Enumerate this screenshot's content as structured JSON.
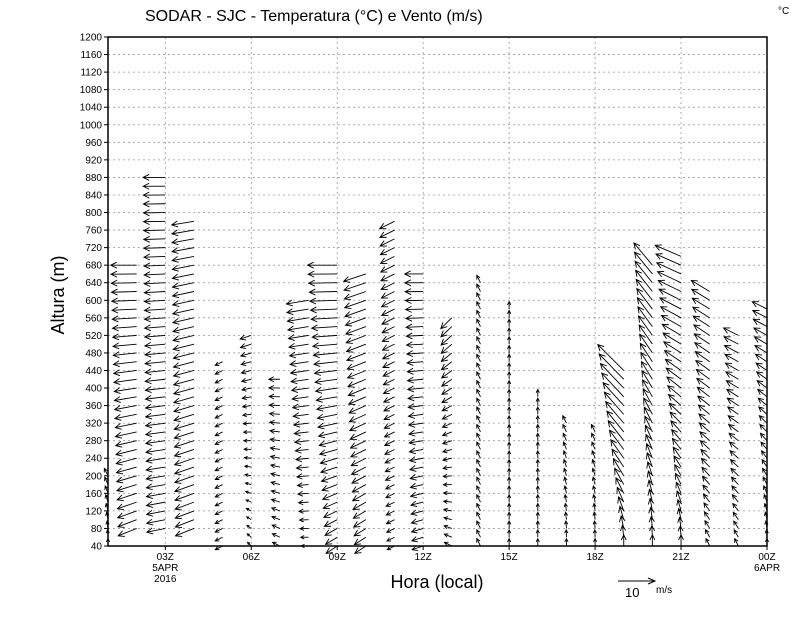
{
  "chart_data": {
    "type": "vector",
    "title": "SODAR - SJC - Temperatura (°C) e Vento (m/s)",
    "corner_label": "°C",
    "xlabel": "Hora (local)",
    "ylabel": "Altura (m)",
    "ylim": [
      40,
      1200
    ],
    "ystep": 40,
    "xlim_hours": [
      1,
      24
    ],
    "grid": true,
    "x_ticks": [
      {
        "hour": 3,
        "label": "03Z",
        "sub": [
          "5APR",
          "2016"
        ]
      },
      {
        "hour": 6,
        "label": "06Z",
        "sub": []
      },
      {
        "hour": 9,
        "label": "09Z",
        "sub": []
      },
      {
        "hour": 12,
        "label": "12Z",
        "sub": []
      },
      {
        "hour": 15,
        "label": "15Z",
        "sub": []
      },
      {
        "hour": 18,
        "label": "18Z",
        "sub": []
      },
      {
        "hour": 21,
        "label": "21Z",
        "sub": []
      },
      {
        "hour": 24,
        "label": "00Z",
        "sub": [
          "6APR"
        ]
      }
    ],
    "reference_vector": {
      "value": 10,
      "label": "10",
      "unit": "m/s"
    },
    "height_step_m": 20,
    "profiles": [
      {
        "hour": 1,
        "bottom": 40,
        "top": 200,
        "u0": 0,
        "v0": 2,
        "u1": -1,
        "v1": 2
      },
      {
        "hour": 2,
        "bottom": 80,
        "top": 680,
        "u0": -5,
        "v0": -2,
        "u1": -7,
        "v1": 0
      },
      {
        "hour": 3,
        "bottom": 80,
        "top": 880,
        "u0": -5,
        "v0": -1,
        "u1": -6,
        "v1": 0
      },
      {
        "hour": 4,
        "bottom": 80,
        "top": 780,
        "u0": -5,
        "v0": -2,
        "u1": -6,
        "v1": -1
      },
      {
        "hour": 5,
        "bottom": 40,
        "top": 460,
        "u0": -2,
        "v0": -1,
        "u1": -2,
        "v1": -1
      },
      {
        "hour": 6,
        "bottom": 40,
        "top": 520,
        "u0": -1,
        "v0": 1,
        "u1": -3,
        "v1": -1
      },
      {
        "hour": 7,
        "bottom": 40,
        "top": 420,
        "u0": -2,
        "v0": 1,
        "u1": -3,
        "v1": 0
      },
      {
        "hour": 8,
        "bottom": 40,
        "top": 600,
        "u0": -2,
        "v0": 0,
        "u1": -6,
        "v1": -1
      },
      {
        "hour": 9,
        "bottom": 40,
        "top": 680,
        "u0": -3,
        "v0": -2,
        "u1": -8,
        "v1": 0
      },
      {
        "hour": 10,
        "bottom": 40,
        "top": 660,
        "u0": -3,
        "v0": -2,
        "u1": -6,
        "v1": -2
      },
      {
        "hour": 11,
        "bottom": 40,
        "top": 780,
        "u0": -2,
        "v0": -1,
        "u1": -4,
        "v1": -2
      },
      {
        "hour": 12,
        "bottom": 40,
        "top": 660,
        "u0": -3,
        "v0": -1,
        "u1": -5,
        "v1": 0
      },
      {
        "hour": 13,
        "bottom": 40,
        "top": 570,
        "u0": -2,
        "v0": 1,
        "u1": -3,
        "v1": -3
      },
      {
        "hour": 14,
        "bottom": 40,
        "top": 640,
        "u0": -1,
        "v0": 2,
        "u1": -1,
        "v1": 2
      },
      {
        "hour": 15,
        "bottom": 40,
        "top": 580,
        "u0": 0,
        "v0": 2,
        "u1": 0,
        "v1": 2
      },
      {
        "hour": 16,
        "bottom": 40,
        "top": 380,
        "u0": 0,
        "v0": 2,
        "u1": 0,
        "v1": 2
      },
      {
        "hour": 17,
        "bottom": 40,
        "top": 320,
        "u0": 0,
        "v0": 2,
        "u1": -1,
        "v1": 2
      },
      {
        "hour": 18,
        "bottom": 40,
        "top": 300,
        "u0": 0,
        "v0": 2,
        "u1": -1,
        "v1": 2
      },
      {
        "hour": 19,
        "bottom": 40,
        "top": 440,
        "u0": 0,
        "v0": 3,
        "u1": -7,
        "v1": 7
      },
      {
        "hour": 20,
        "bottom": 40,
        "top": 680,
        "u0": 0,
        "v0": 3,
        "u1": -5,
        "v1": 6
      },
      {
        "hour": 21,
        "bottom": 40,
        "top": 700,
        "u0": 0,
        "v0": 3,
        "u1": -7,
        "v1": 3
      },
      {
        "hour": 22,
        "bottom": 40,
        "top": 620,
        "u0": -1,
        "v0": 2,
        "u1": -5,
        "v1": 3
      },
      {
        "hour": 23,
        "bottom": 40,
        "top": 520,
        "u0": -1,
        "v0": 2,
        "u1": -4,
        "v1": 2
      },
      {
        "hour": 24,
        "bottom": 40,
        "top": 580,
        "u0": 0,
        "v0": 2,
        "u1": -4,
        "v1": 2
      }
    ]
  }
}
